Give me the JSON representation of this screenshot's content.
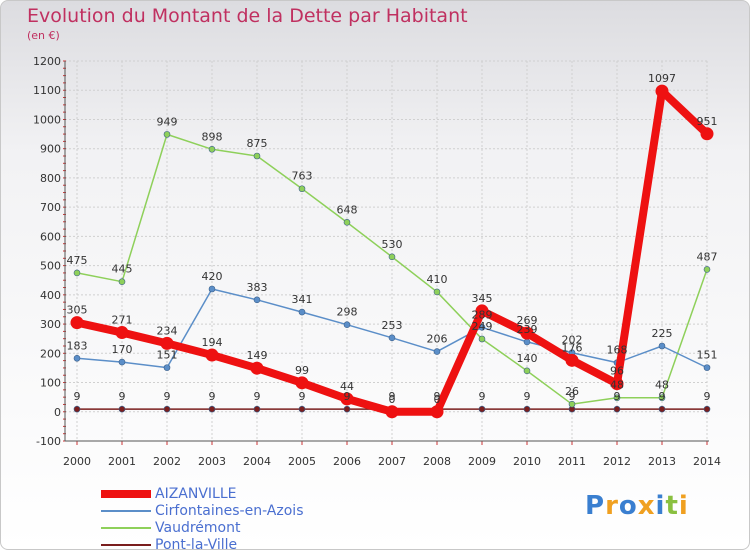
{
  "chart_data": {
    "type": "line",
    "title": "Evolution du Montant de la Dette par Habitant",
    "subtitle": "(en €)",
    "x": [
      "2000",
      "2001",
      "2002",
      "2003",
      "2004",
      "2005",
      "2006",
      "2007",
      "2008",
      "2009",
      "2010",
      "2011",
      "2012",
      "2013",
      "2014"
    ],
    "ylim": [
      -100,
      1200
    ],
    "yticks": [
      -100,
      0,
      100,
      200,
      300,
      400,
      500,
      600,
      700,
      800,
      900,
      1000,
      1100,
      1200
    ],
    "grid": true,
    "series": [
      {
        "name": "Pont-la-Ville",
        "color": "#7a1e1e",
        "width": 1.5,
        "values": [
          9,
          9,
          9,
          9,
          9,
          9,
          9,
          9,
          9,
          9,
          9,
          9,
          9,
          9,
          9
        ]
      },
      {
        "name": "Vaudrémont",
        "color": "#8ed05a",
        "width": 1.5,
        "values": [
          475,
          445,
          949,
          898,
          875,
          763,
          648,
          530,
          410,
          249,
          140,
          26,
          48,
          48,
          487
        ]
      },
      {
        "name": "Cirfontaines-en-Azois",
        "color": "#5b8ec8",
        "width": 1.5,
        "values": [
          183,
          170,
          151,
          420,
          383,
          341,
          298,
          253,
          206,
          289,
          239,
          202,
          168,
          225,
          151
        ]
      },
      {
        "name": "AIZANVILLE",
        "color": "#ee1111",
        "width": 8,
        "values": [
          305,
          271,
          234,
          194,
          149,
          99,
          44,
          0,
          0,
          345,
          269,
          176,
          96,
          1097,
          951
        ]
      }
    ],
    "legend_order": [
      "AIZANVILLE",
      "Cirfontaines-en-Azois",
      "Vaudrémont",
      "Pont-la-Ville"
    ],
    "legend_placement": "bottom-left"
  },
  "logo": {
    "letters": [
      "P",
      "r",
      "o",
      "x",
      "i",
      "t",
      "i"
    ],
    "colors": [
      "#3a7fd0",
      "#f0a020",
      "#3a7fd0",
      "#f0a020",
      "#3a7fd0",
      "#8ac040",
      "#f0a020"
    ]
  }
}
